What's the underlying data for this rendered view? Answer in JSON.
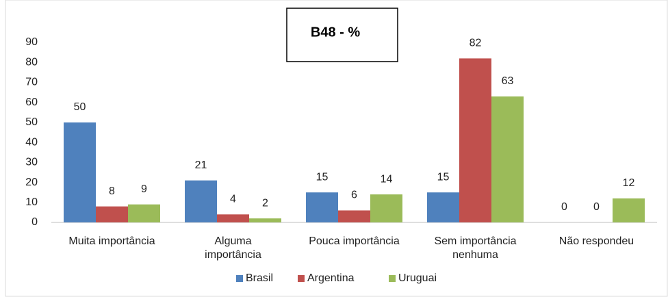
{
  "chart_data": {
    "type": "bar",
    "title": "B48 - %",
    "categories": [
      "Muita importância",
      "Alguma importância",
      "Pouca importância",
      "Sem importância nenhuma",
      "Não respondeu"
    ],
    "series": [
      {
        "name": "Brasil",
        "color": "#4f81bd",
        "values": [
          50,
          21,
          15,
          15,
          0
        ]
      },
      {
        "name": "Argentina",
        "color": "#c0504d",
        "values": [
          8,
          4,
          6,
          82,
          0
        ]
      },
      {
        "name": "Uruguai",
        "color": "#9bbb59",
        "values": [
          9,
          2,
          14,
          63,
          12
        ]
      }
    ],
    "ylim": [
      0,
      90
    ],
    "yticks": [
      0,
      10,
      20,
      30,
      40,
      50,
      60,
      70,
      80,
      90
    ],
    "grid": false,
    "legend": "bottom"
  }
}
